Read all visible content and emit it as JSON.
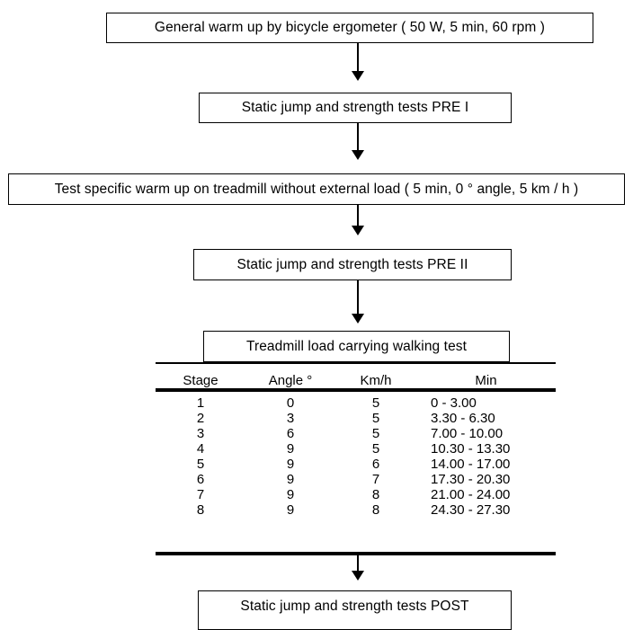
{
  "steps": {
    "warmup_general": "General warm up  by bicycle ergometer ( 50 W, 5 min, 60 rpm )",
    "pre1": "Static jump and strength tests PRE I",
    "warmup_specific": "Test specific warm up on treadmill without external load  ( 5 min, 0 °  angle, 5 km / h )",
    "pre2": "Static jump and strength tests PRE II",
    "treadmill_test": "Treadmill load carrying walking test",
    "post": "Static jump and strength tests POST"
  },
  "table": {
    "headers": {
      "stage": "Stage",
      "angle": "Angle °",
      "kmh": "Km/h",
      "min": "Min"
    },
    "rows": [
      {
        "stage": "1",
        "angle": "0",
        "kmh": "5",
        "min": "0 - 3.00"
      },
      {
        "stage": "2",
        "angle": "3",
        "kmh": "5",
        "min": "3.30  - 6.30"
      },
      {
        "stage": "3",
        "angle": "6",
        "kmh": "5",
        "min": "7.00  - 10.00"
      },
      {
        "stage": "4",
        "angle": "9",
        "kmh": "5",
        "min": "10.30  - 13.30"
      },
      {
        "stage": "5",
        "angle": "9",
        "kmh": "6",
        "min": "14.00  - 17.00"
      },
      {
        "stage": "6",
        "angle": "9",
        "kmh": "7",
        "min": "17.30  - 20.30"
      },
      {
        "stage": "7",
        "angle": "9",
        "kmh": "8",
        "min": "21.00  - 24.00"
      },
      {
        "stage": "8",
        "angle": "9",
        "kmh": "8",
        "min": "24.30  - 27.30"
      }
    ]
  }
}
